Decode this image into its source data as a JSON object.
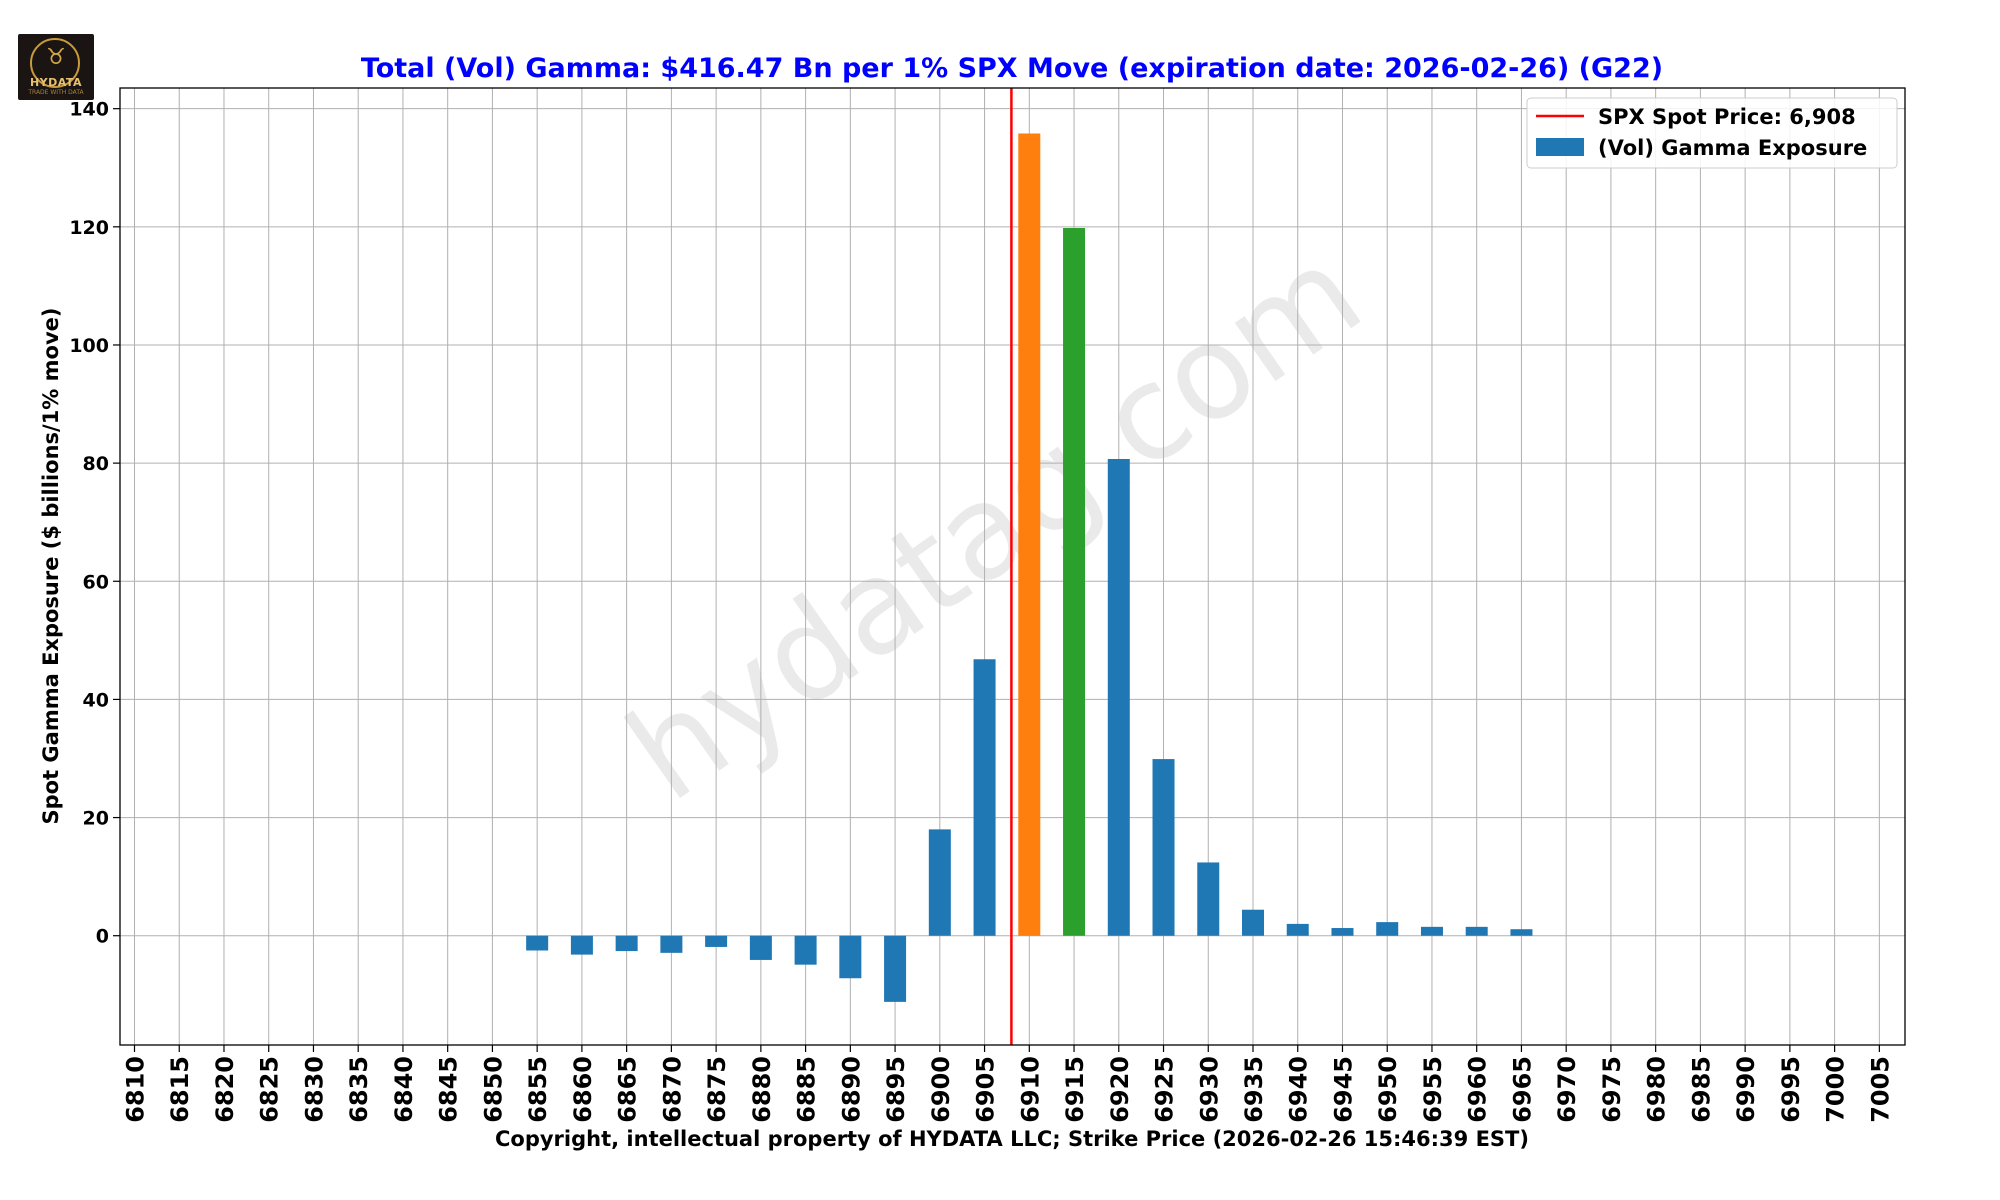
{
  "logo": {
    "text": "HYDATA",
    "subtext": "TRADE WITH DATA",
    "icon": "bull-icon"
  },
  "chart_data": {
    "type": "bar",
    "title": "Total (Vol) Gamma: $416.47 Bn per 1% SPX Move (expiration date: 2026-02-26) (G22)",
    "title_color": "#0000ff",
    "ylabel": "Spot Gamma Exposure ($ billions/1% move)",
    "xlabel": "Copyright, intellectual property of HYDATA LLC; Strike Price (2026-02-26 15:46:39 EST)",
    "ylim": [
      -18.5,
      143.5
    ],
    "yticks": [
      0,
      20,
      40,
      60,
      80,
      100,
      120,
      140
    ],
    "grid": true,
    "watermark": "hydatag.com",
    "spot_price": {
      "value": 6908,
      "label": "SPX Spot Price: 6,908",
      "color": "#ff0000"
    },
    "legend": {
      "placement": "top-right",
      "entries": [
        {
          "label": "SPX Spot Price: 6,908",
          "kind": "line",
          "color": "#ff0000"
        },
        {
          "label": "(Vol) Gamma Exposure",
          "kind": "bar",
          "color": "#1f77b4"
        }
      ]
    },
    "categories": [
      "6810",
      "6815",
      "6820",
      "6825",
      "6830",
      "6835",
      "6840",
      "6845",
      "6850",
      "6855",
      "6860",
      "6865",
      "6870",
      "6875",
      "6880",
      "6885",
      "6890",
      "6895",
      "6900",
      "6905",
      "6910",
      "6915",
      "6920",
      "6925",
      "6930",
      "6935",
      "6940",
      "6945",
      "6950",
      "6955",
      "6960",
      "6965",
      "6970",
      "6975",
      "6980",
      "6985",
      "6990",
      "6995",
      "7000",
      "7005"
    ],
    "values": [
      null,
      null,
      null,
      null,
      null,
      null,
      null,
      null,
      null,
      -2.5,
      -3.2,
      -2.6,
      -2.9,
      -1.9,
      -4.1,
      -4.9,
      -7.2,
      -11.2,
      18.0,
      46.8,
      135.8,
      119.8,
      80.7,
      29.9,
      12.4,
      4.4,
      2.0,
      1.3,
      2.3,
      1.5,
      1.5,
      1.1,
      null,
      null,
      null,
      null,
      null,
      null,
      null,
      null
    ],
    "series_name": "(Vol) Gamma Exposure",
    "colors": {
      "default": "#1f77b4",
      "6910": "#ff7f0e",
      "6915": "#2ca02c"
    }
  }
}
